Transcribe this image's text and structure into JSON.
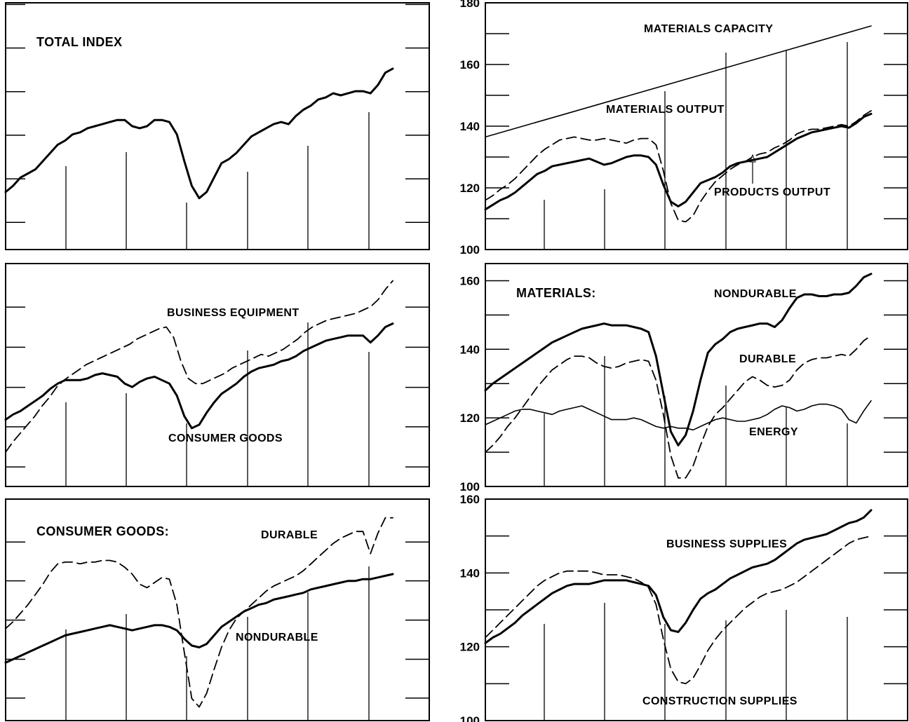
{
  "chart_data": [
    {
      "type": "line",
      "title": "TOTAL INDEX",
      "x_ticks": 6,
      "series": [
        {
          "values": [
            114,
            115.5,
            117.5,
            118.5,
            119.5,
            121.5,
            123.5,
            125.5,
            126.5,
            128,
            128.5,
            129.5,
            130,
            130.5,
            131,
            131.5,
            131.5,
            130,
            129.5,
            130,
            131.5,
            131.5,
            131,
            128,
            121.5,
            115.5,
            112.5,
            114,
            117.5,
            121,
            122,
            123.5,
            125.5,
            127.5,
            128.5,
            129.5,
            130.5,
            131,
            130.5,
            132.5,
            134,
            135,
            136.5,
            137,
            138,
            137.5,
            138,
            138.5,
            138.5,
            138,
            140,
            143,
            144
          ],
          "style": "solid-thick"
        }
      ]
    },
    {
      "type": "line",
      "title": "MATERIALS CAPACITY",
      "y_ticks": [
        "100",
        "120",
        "140",
        "160",
        "180"
      ],
      "ylim": [
        100,
        180
      ],
      "x_ticks": 6,
      "series": [
        {
          "name": "MATERIALS CAPACITY",
          "values": [
            136.5,
            172.5
          ],
          "style": "solid-thin"
        },
        {
          "name": "MATERIALS OUTPUT",
          "values": [
            116,
            117.5,
            119.5,
            121,
            123,
            125.5,
            128,
            130.5,
            132.5,
            134,
            135.5,
            136,
            136.5,
            136,
            135.5,
            135.5,
            136,
            135.5,
            135,
            134.5,
            135.5,
            136,
            136,
            134,
            125.5,
            115,
            109.5,
            109,
            111,
            115.5,
            119,
            122,
            124,
            126,
            127.5,
            128.5,
            130,
            131,
            131.5,
            133,
            134,
            135.5,
            137.5,
            138.5,
            139,
            139,
            139.5,
            140,
            140.5,
            140,
            141.5,
            143.5,
            145
          ],
          "style": "dashed"
        },
        {
          "name": "PRODUCTS OUTPUT",
          "values": [
            113,
            114.5,
            116,
            117,
            118.5,
            120.5,
            122.5,
            124.5,
            125.5,
            127,
            127.5,
            128,
            128.5,
            129,
            129.5,
            128.5,
            127.5,
            128,
            129,
            130,
            130.5,
            130.5,
            130,
            127.5,
            121,
            115.5,
            114,
            115.5,
            118.5,
            121.5,
            122.5,
            123.5,
            125,
            127,
            128,
            128.5,
            129,
            129.5,
            130,
            131.5,
            133,
            134.5,
            136,
            137,
            138,
            138.5,
            139,
            139.5,
            140,
            139.5,
            141,
            143,
            144
          ],
          "style": "solid-thick"
        }
      ],
      "annotations": [
        "PRODUCTS OUTPUT"
      ]
    },
    {
      "type": "line",
      "title": "",
      "x_ticks": 6,
      "series": [
        {
          "name": "BUSINESS EQUIPMENT",
          "values": [
            110,
            113,
            115.5,
            118,
            120.5,
            123.5,
            126,
            129,
            131,
            132.5,
            134,
            135.5,
            136.5,
            137.5,
            138.5,
            139.5,
            140.5,
            141.5,
            143,
            144,
            145,
            146,
            146.5,
            143.5,
            136.5,
            131.5,
            130,
            130,
            131,
            132,
            133,
            134.5,
            135.5,
            136.5,
            137.5,
            138.5,
            138,
            139,
            140,
            141.5,
            143,
            145,
            146.5,
            147.5,
            148.5,
            149,
            149.5,
            150,
            150.5,
            151.5,
            152.5,
            154.5,
            157.5,
            160
          ],
          "style": "dashed"
        },
        {
          "name": "CONSUMER GOODS",
          "values": [
            119.5,
            121,
            122,
            123.5,
            125,
            126.5,
            128.5,
            130,
            131,
            131,
            131,
            131.5,
            132.5,
            133,
            132.5,
            132,
            130,
            129,
            130.5,
            131.5,
            132,
            131,
            130,
            126.5,
            120.5,
            117,
            118,
            121.5,
            124.5,
            127,
            128.5,
            130,
            132,
            133.5,
            134.5,
            135,
            135.5,
            136.5,
            137,
            138,
            139.5,
            140.5,
            141.5,
            142.5,
            143,
            143.5,
            144,
            144,
            144,
            142,
            144,
            146.5,
            147.5
          ],
          "style": "solid-thick"
        }
      ]
    },
    {
      "type": "line",
      "title": "MATERIALS:",
      "y_ticks": [
        "100",
        "120",
        "140",
        "160"
      ],
      "ylim": [
        100,
        165
      ],
      "x_ticks": 6,
      "series": [
        {
          "name": "NONDURABLE",
          "values": [
            128,
            130,
            131.5,
            133,
            134.5,
            136,
            137.5,
            139,
            140.5,
            142,
            143,
            144,
            145,
            146,
            146.5,
            147,
            147.5,
            147,
            147,
            147,
            146.5,
            146,
            145,
            138,
            127,
            116,
            112,
            115,
            122,
            131,
            139,
            141.5,
            143,
            145,
            146,
            146.5,
            147,
            147.5,
            147.5,
            146.5,
            148.5,
            152,
            155,
            156,
            156,
            155.5,
            155.5,
            156,
            156,
            156.5,
            158.5,
            161,
            162
          ],
          "style": "solid-thick"
        },
        {
          "name": "DURABLE",
          "values": [
            110,
            112,
            114.5,
            117.5,
            120,
            123,
            126,
            129,
            131.5,
            134,
            135.5,
            137,
            138,
            138,
            137.5,
            136,
            135,
            134.5,
            135,
            136,
            136.5,
            137,
            136.5,
            131,
            121,
            109,
            102.5,
            102.5,
            106,
            112,
            117.5,
            121,
            123,
            125.5,
            128,
            130.5,
            132,
            131,
            129.5,
            129,
            129.5,
            131,
            134,
            136,
            137,
            137.5,
            137.5,
            138,
            138.5,
            138,
            140,
            142.5,
            144
          ],
          "style": "dashed"
        },
        {
          "name": "ENERGY",
          "values": [
            118,
            119,
            120,
            121,
            122,
            122.5,
            122.5,
            122,
            121.5,
            121,
            122,
            122.5,
            123,
            123.5,
            122.5,
            121.5,
            120.5,
            119.5,
            119.5,
            119.5,
            120,
            119.5,
            118.5,
            117.5,
            117,
            117.5,
            117,
            117,
            116.5,
            117.5,
            118.5,
            119.5,
            120,
            119.5,
            119,
            119,
            119.5,
            120,
            121,
            122.5,
            123.5,
            123,
            122,
            122.5,
            123.5,
            124,
            124,
            123.5,
            122.5,
            119.5,
            118.5,
            122,
            125
          ],
          "style": "solid-thin"
        }
      ]
    },
    {
      "type": "line",
      "title": "CONSUMER GOODS:",
      "x_ticks": 6,
      "series": [
        {
          "name": "DURABLE",
          "values": [
            127,
            129,
            131.5,
            134,
            137,
            140,
            143.5,
            146,
            146.5,
            146.5,
            146,
            146.5,
            146.5,
            147,
            147,
            146.5,
            145,
            143,
            140,
            139,
            140.5,
            142,
            141.5,
            134,
            120,
            106.5,
            104,
            108,
            115,
            121.5,
            126.5,
            130,
            132,
            134,
            136,
            138,
            139.5,
            140.5,
            141.5,
            142.5,
            144,
            146,
            148,
            150,
            152,
            153.5,
            154.5,
            155.5,
            155.5,
            149,
            155,
            159.5,
            159.5
          ],
          "style": "dashed"
        },
        {
          "name": "NONDURABLE",
          "values": [
            117,
            118,
            119,
            120,
            121,
            122,
            123,
            124,
            125,
            125.5,
            126,
            126.5,
            127,
            127.5,
            128,
            127.5,
            127,
            126.5,
            127,
            127.5,
            128,
            128,
            127.5,
            126.5,
            124,
            122,
            121.5,
            122.5,
            125,
            127.5,
            129,
            130.5,
            132,
            133,
            134,
            134.5,
            135.5,
            136,
            136.5,
            137,
            137.5,
            138.5,
            139,
            139.5,
            140,
            140.5,
            141,
            141,
            141.5,
            141.5,
            142,
            142.5,
            143
          ],
          "style": "solid-thick"
        }
      ]
    },
    {
      "type": "line",
      "title": "",
      "y_ticks": [
        "100",
        "120",
        "140",
        "160"
      ],
      "ylim": [
        100,
        160
      ],
      "x_ticks": 6,
      "series": [
        {
          "name": "BUSINESS SUPPLIES",
          "values": [
            121,
            122.5,
            123.5,
            125,
            126.5,
            128.5,
            130,
            131.5,
            133,
            134.5,
            135.5,
            136.5,
            137,
            137,
            137,
            137.5,
            138,
            138,
            138,
            138,
            137.5,
            137,
            136.5,
            134,
            128,
            124.5,
            124,
            126.5,
            130,
            133,
            134.5,
            135.5,
            137,
            138.5,
            139.5,
            140.5,
            141.5,
            142,
            142.5,
            143.5,
            145,
            146.5,
            148,
            149,
            149.5,
            150,
            150.5,
            151.5,
            152.5,
            153.5,
            154,
            155,
            157
          ],
          "style": "solid-thick"
        },
        {
          "name": "CONSTRUCTION SUPPLIES",
          "values": [
            122.5,
            124.5,
            126.5,
            128.5,
            130.5,
            132.5,
            134.5,
            136.5,
            138,
            139,
            140,
            140.5,
            140.5,
            140.5,
            140.5,
            140,
            139.5,
            139.5,
            139.5,
            139,
            138.5,
            137.5,
            136,
            131.5,
            122,
            114,
            110.5,
            110,
            111.5,
            115,
            119,
            122,
            124.5,
            126.5,
            128.5,
            130.5,
            132,
            133.5,
            134.5,
            135,
            135.5,
            136.5,
            137.5,
            139,
            140.5,
            142,
            143.5,
            145,
            146.5,
            148,
            149,
            149.5,
            150
          ],
          "style": "dashed"
        }
      ]
    }
  ]
}
